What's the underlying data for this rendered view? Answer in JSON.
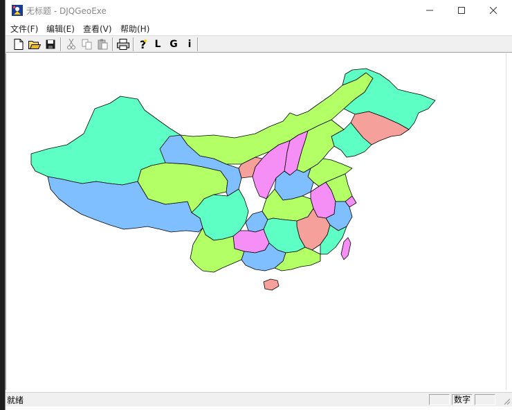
{
  "window": {
    "title": "无标题 - DJQGeoExe"
  },
  "menubar": {
    "items": [
      "文件(F)",
      "编辑(E)",
      "查看(V)",
      "帮助(H)"
    ]
  },
  "toolbar": {
    "letters": [
      "L",
      "G",
      "i"
    ]
  },
  "statusbar": {
    "status": "就绪",
    "num_indicator": "数字"
  },
  "colors": {
    "green": "#b2ff66",
    "teal": "#5effc4",
    "blue": "#80bfff",
    "pink": "#f58ef5",
    "salmon": "#f5a09a"
  },
  "map": {
    "subject": "China provinces choropleth"
  }
}
